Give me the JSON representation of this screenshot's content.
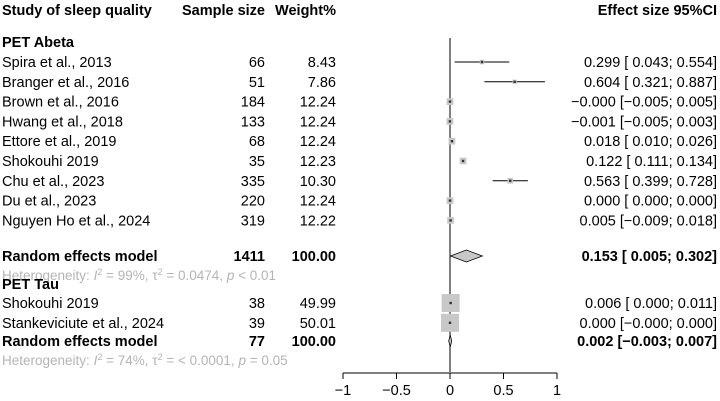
{
  "chart_data": {
    "type": "forest",
    "header": {
      "study": "Study of sleep quality",
      "sample": "Sample size",
      "weight": "Weight%",
      "effect": "Effect size 95%CI"
    },
    "xaxis": {
      "ticks": [
        -1,
        -0.5,
        0,
        0.5,
        1
      ],
      "tick_labels": [
        "−1",
        "−0.5",
        "0",
        "0.5",
        "1"
      ],
      "range": [
        -1,
        1
      ]
    },
    "groups": [
      {
        "name": "PET Abeta",
        "studies": [
          {
            "study": "Spira et al., 2013",
            "n": "66",
            "weight": "8.43",
            "est": 0.299,
            "lo": 0.043,
            "hi": 0.554,
            "ci_text": "0.299 [ 0.043; 0.554]"
          },
          {
            "study": "Branger et al., 2016",
            "n": "51",
            "weight": "7.86",
            "est": 0.604,
            "lo": 0.321,
            "hi": 0.887,
            "ci_text": "0.604 [ 0.321; 0.887]"
          },
          {
            "study": "Brown et al., 2016",
            "n": "184",
            "weight": "12.24",
            "est": 0.0,
            "lo": -0.005,
            "hi": 0.005,
            "ci_text": "−0.000 [−0.005; 0.005]"
          },
          {
            "study": "Hwang et al., 2018",
            "n": "133",
            "weight": "12.24",
            "est": -0.001,
            "lo": -0.005,
            "hi": 0.003,
            "ci_text": "−0.001 [−0.005; 0.003]"
          },
          {
            "study": "Ettore et al., 2019",
            "n": "68",
            "weight": "12.24",
            "est": 0.018,
            "lo": 0.01,
            "hi": 0.026,
            "ci_text": "0.018 [ 0.010; 0.026]"
          },
          {
            "study": "Shokouhi 2019",
            "n": "35",
            "weight": "12.23",
            "est": 0.122,
            "lo": 0.111,
            "hi": 0.134,
            "ci_text": "0.122 [ 0.111; 0.134]"
          },
          {
            "study": "Chu et al., 2023",
            "n": "335",
            "weight": "10.30",
            "est": 0.563,
            "lo": 0.399,
            "hi": 0.728,
            "ci_text": "0.563 [ 0.399; 0.728]"
          },
          {
            "study": "Du et al., 2023",
            "n": "220",
            "weight": "12.24",
            "est": 0.0,
            "lo": 0.0,
            "hi": 0.0,
            "ci_text": "0.000 [ 0.000; 0.000]"
          },
          {
            "study": "Nguyen Ho et al., 2024",
            "n": "319",
            "weight": "12.22",
            "est": 0.005,
            "lo": -0.009,
            "hi": 0.018,
            "ci_text": "0.005 [−0.009; 0.018]"
          }
        ],
        "pooled": {
          "label": "Random effects model",
          "n": "1411",
          "weight": "100.00",
          "est": 0.153,
          "lo": 0.005,
          "hi": 0.302,
          "ci_text": "0.153 [ 0.005; 0.302]"
        },
        "heterogeneity": {
          "prefix": "Heterogeneity: ",
          "i2": "99%",
          "tau2": "0.0474",
          "p": "< 0.01"
        }
      },
      {
        "name": "PET Tau",
        "studies": [
          {
            "study": "Shokouhi 2019",
            "n": "38",
            "weight": "49.99",
            "est": 0.006,
            "lo": 0.0,
            "hi": 0.011,
            "ci_text": "0.006 [ 0.000; 0.011]"
          },
          {
            "study": "Stankeviciute et al., 2024",
            "n": "39",
            "weight": "50.01",
            "est": 0.0,
            "lo": -0.0,
            "hi": 0.0,
            "ci_text": "0.000 [−0.000; 0.000]"
          }
        ],
        "pooled": {
          "label": "Random effects model",
          "n": "77",
          "weight": "100.00",
          "est": 0.002,
          "lo": -0.003,
          "hi": 0.007,
          "ci_text": "0.002 [−0.003; 0.007]"
        },
        "heterogeneity": {
          "prefix": "Heterogeneity: ",
          "i2": "74%",
          "tau2": "< 0.0001",
          "p": "= 0.05"
        }
      }
    ],
    "colors": {
      "text": "#000000",
      "box": "#c8c8c8",
      "diamond": "#c8c8c8",
      "heterogeneity": "#b4b4b4"
    }
  }
}
